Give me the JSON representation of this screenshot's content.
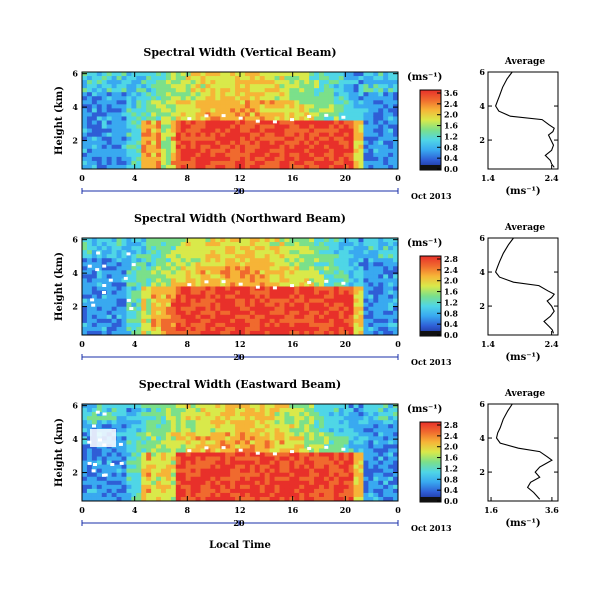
{
  "panels": [
    {
      "title": "Spectral Width (Vertical Beam)",
      "ylabel": "Height (km)",
      "unit": "(ms⁻¹)",
      "colorbar_ticks": [
        "3.6",
        "2.4",
        "2.0",
        "1.6",
        "1.2",
        "0.8",
        "0.4",
        "0.0"
      ],
      "date_day": "20",
      "date_text": "Oct 2013",
      "avg_title": "Average",
      "avg_xticks": [
        "1.4",
        "2.4"
      ],
      "avg_xlabel": "(ms⁻¹)"
    },
    {
      "title": "Spectral Width (Northward Beam)",
      "ylabel": "Height (km)",
      "unit": "(ms⁻¹)",
      "colorbar_ticks": [
        "2.8",
        "2.4",
        "2.0",
        "1.6",
        "1.2",
        "0.8",
        "0.4",
        "0.0"
      ],
      "date_day": "20",
      "date_text": "Oct 2013",
      "avg_title": "Average",
      "avg_xticks": [
        "1.4",
        "2.4"
      ],
      "avg_xlabel": "(ms⁻¹)"
    },
    {
      "title": "Spectral Width (Eastward Beam)",
      "ylabel": "Height (km)",
      "unit": "(ms⁻¹)",
      "colorbar_ticks": [
        "2.8",
        "2.4",
        "2.0",
        "1.6",
        "1.2",
        "0.8",
        "0.4",
        "0.0"
      ],
      "date_day": "20",
      "date_text": "Oct 2013",
      "avg_title": "Average",
      "avg_xticks": [
        "1.6",
        "3.6"
      ],
      "avg_xlabel": "(ms⁻¹)"
    }
  ],
  "xlabel": "Local Time",
  "chart_data": [
    {
      "type": "heatmap",
      "title": "Spectral Width (Vertical Beam)",
      "xlabel": "Local Time",
      "ylabel": "Height (km)",
      "x_ticks": [
        "0",
        "4",
        "8",
        "12",
        "16",
        "20",
        "0"
      ],
      "xlim": [
        0,
        24
      ],
      "y_ticks": [
        "2",
        "4",
        "6"
      ],
      "ylim": [
        0.3,
        6.1
      ],
      "colorbar_label": "(ms⁻¹)",
      "colorbar_ticks": [
        "3.6",
        "2.4",
        "2.0",
        "1.6",
        "1.2",
        "0.8",
        "0.4",
        "0.0"
      ],
      "colormap": [
        "#1b2a8a",
        "#2f5ed6",
        "#39a9f0",
        "#4fd6e6",
        "#7be08a",
        "#d9e94a",
        "#f6b437",
        "#f06a2e",
        "#e8302a"
      ]
    },
    {
      "type": "line",
      "title": "Average",
      "xlabel": "(ms⁻¹)",
      "x_ticks": [
        "1.4",
        "2.4"
      ],
      "xlim": [
        1.4,
        2.5
      ],
      "y_ticks": [
        "2",
        "4",
        "6"
      ],
      "ylim": [
        0.3,
        6.0
      ],
      "series": [
        {
          "x": [
            1.78,
            1.7,
            1.63,
            1.58,
            1.55,
            1.52,
            1.57,
            1.75,
            2.25,
            2.36,
            2.44,
            2.42,
            2.35,
            2.39,
            2.43,
            2.4,
            2.3,
            2.38,
            2.4,
            2.44
          ],
          "y": [
            6.0,
            5.6,
            5.1,
            4.6,
            4.3,
            4.0,
            3.7,
            3.4,
            3.2,
            2.9,
            2.7,
            2.5,
            2.3,
            2.0,
            1.7,
            1.4,
            1.1,
            0.8,
            0.6,
            0.4
          ]
        }
      ]
    },
    {
      "type": "heatmap",
      "title": "Spectral Width (Northward Beam)",
      "xlabel": "Local Time",
      "ylabel": "Height (km)",
      "x_ticks": [
        "0",
        "4",
        "8",
        "12",
        "16",
        "20",
        "0"
      ],
      "xlim": [
        0,
        24
      ],
      "y_ticks": [
        "2",
        "4",
        "6"
      ],
      "ylim": [
        0.3,
        6.1
      ],
      "colorbar_label": "(ms⁻¹)",
      "colorbar_ticks": [
        "2.8",
        "2.4",
        "2.0",
        "1.6",
        "1.2",
        "0.8",
        "0.4",
        "0.0"
      ],
      "colormap": [
        "#1b2a8a",
        "#2f5ed6",
        "#39a9f0",
        "#4fd6e6",
        "#7be08a",
        "#d9e94a",
        "#f6b437",
        "#f06a2e",
        "#e8302a"
      ]
    },
    {
      "type": "line",
      "title": "Average",
      "xlabel": "(ms⁻¹)",
      "x_ticks": [
        "1.4",
        "2.4"
      ],
      "xlim": [
        1.4,
        2.5
      ],
      "y_ticks": [
        "2",
        "4",
        "6"
      ],
      "ylim": [
        0.3,
        6.0
      ],
      "series": [
        {
          "x": [
            1.8,
            1.72,
            1.64,
            1.58,
            1.55,
            1.52,
            1.58,
            1.8,
            2.2,
            2.34,
            2.44,
            2.4,
            2.33,
            2.4,
            2.44,
            2.38,
            2.28,
            2.36,
            2.41,
            2.43
          ],
          "y": [
            6.0,
            5.6,
            5.1,
            4.6,
            4.3,
            4.0,
            3.7,
            3.4,
            3.2,
            2.9,
            2.7,
            2.5,
            2.3,
            2.0,
            1.7,
            1.4,
            1.1,
            0.8,
            0.6,
            0.4
          ]
        }
      ]
    },
    {
      "type": "heatmap",
      "title": "Spectral Width (Eastward Beam)",
      "xlabel": "Local Time",
      "ylabel": "Height (km)",
      "x_ticks": [
        "0",
        "4",
        "8",
        "12",
        "16",
        "20",
        "0"
      ],
      "xlim": [
        0,
        24
      ],
      "y_ticks": [
        "2",
        "4",
        "6"
      ],
      "ylim": [
        0.3,
        6.1
      ],
      "colorbar_label": "(ms⁻¹)",
      "colorbar_ticks": [
        "2.8",
        "2.4",
        "2.0",
        "1.6",
        "1.2",
        "0.8",
        "0.4",
        "0.0"
      ],
      "colormap": [
        "#1b2a8a",
        "#2f5ed6",
        "#39a9f0",
        "#4fd6e6",
        "#7be08a",
        "#d9e94a",
        "#f6b437",
        "#f06a2e",
        "#e8302a"
      ]
    },
    {
      "type": "line",
      "title": "Average",
      "xlabel": "(ms⁻¹)",
      "x_ticks": [
        "1.6",
        "3.6"
      ],
      "xlim": [
        1.5,
        3.8
      ],
      "y_ticks": [
        "2",
        "4",
        "6"
      ],
      "ylim": [
        0.3,
        6.0
      ],
      "series": [
        {
          "x": [
            2.3,
            2.15,
            2.0,
            1.9,
            1.82,
            1.78,
            1.9,
            2.5,
            3.2,
            3.45,
            3.6,
            3.4,
            3.2,
            3.05,
            3.2,
            2.9,
            2.8,
            3.0,
            3.1,
            3.2
          ],
          "y": [
            6.0,
            5.6,
            5.1,
            4.6,
            4.3,
            4.0,
            3.7,
            3.4,
            3.2,
            2.9,
            2.7,
            2.5,
            2.3,
            2.0,
            1.7,
            1.4,
            1.1,
            0.8,
            0.6,
            0.4
          ]
        }
      ]
    }
  ]
}
